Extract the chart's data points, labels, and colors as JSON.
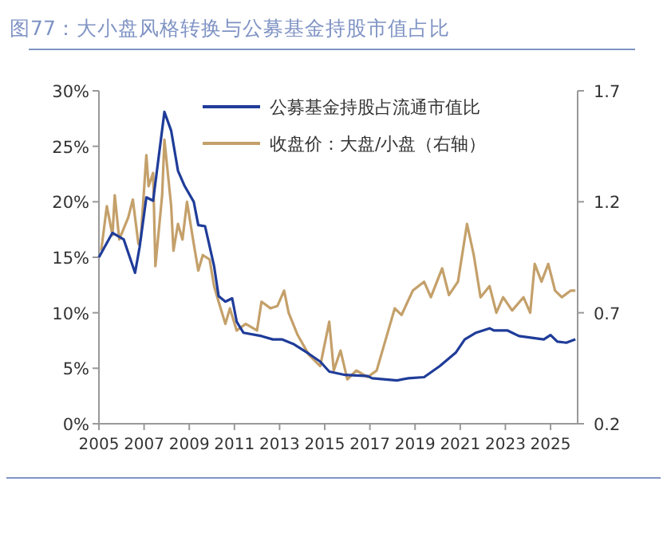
{
  "chart_data": {
    "type": "line",
    "title": "图77：大小盘风格转换与公募基金持股市值占比",
    "xlim": [
      2005,
      2026.2
    ],
    "xticks": [
      2005,
      2007,
      2009,
      2011,
      2013,
      2015,
      2017,
      2019,
      2021,
      2023,
      2025
    ],
    "ylim": [
      0,
      30
    ],
    "yticks": [
      {
        "value": 0,
        "label": "0%"
      },
      {
        "value": 5,
        "label": "5%"
      },
      {
        "value": 10,
        "label": "10%"
      },
      {
        "value": 15,
        "label": "15%"
      },
      {
        "value": 20,
        "label": "20%"
      },
      {
        "value": 25,
        "label": "25%"
      },
      {
        "value": 30,
        "label": "30%"
      }
    ],
    "y2lim": [
      0.2,
      1.7
    ],
    "y2ticks": [
      0.2,
      0.7,
      1.2,
      1.7
    ],
    "legend": "top",
    "grid": false,
    "series": [
      {
        "name": "公募基金持股占流通市值比",
        "color": "#1f3c99",
        "x": [
          2005.0,
          2005.6,
          2006.1,
          2006.6,
          2006.8,
          2007.1,
          2007.4,
          2007.9,
          2008.2,
          2008.5,
          2008.8,
          2009.2,
          2009.4,
          2009.7,
          2010.1,
          2010.3,
          2010.6,
          2010.9,
          2011.1,
          2011.4,
          2012.2,
          2012.7,
          2013.1,
          2013.6,
          2014.3,
          2014.8,
          2015.2,
          2015.9,
          2016.9,
          2017.1,
          2018.2,
          2018.7,
          2019.4,
          2020.1,
          2020.8,
          2021.2,
          2021.7,
          2022.3,
          2022.5,
          2023.1,
          2023.6,
          2024.7,
          2025.0,
          2025.3,
          2025.7,
          2026.1
        ],
        "values": [
          15.0,
          17.2,
          16.6,
          13.6,
          15.9,
          20.4,
          20.1,
          28.1,
          26.4,
          22.8,
          21.4,
          20.0,
          17.9,
          17.8,
          14.2,
          11.5,
          11.0,
          11.3,
          9.2,
          8.2,
          7.9,
          7.6,
          7.6,
          7.2,
          6.3,
          5.6,
          4.7,
          4.4,
          4.3,
          4.1,
          3.9,
          4.1,
          4.2,
          5.2,
          6.4,
          7.6,
          8.2,
          8.6,
          8.4,
          8.4,
          7.9,
          7.6,
          8.0,
          7.4,
          7.3,
          7.6
        ]
      },
      {
        "name": "收盘价：大盘/小盘（右轴）",
        "color": "#c4a06a",
        "axis": "y2",
        "x": [
          2005.1,
          2005.35,
          2005.6,
          2005.7,
          2005.9,
          2006.3,
          2006.5,
          2006.75,
          2006.85,
          2007.1,
          2007.2,
          2007.4,
          2007.5,
          2007.8,
          2007.9,
          2008.2,
          2008.3,
          2008.5,
          2008.7,
          2008.9,
          2009.2,
          2009.4,
          2009.6,
          2009.9,
          2010.1,
          2010.3,
          2010.6,
          2010.8,
          2011.1,
          2011.5,
          2012.0,
          2012.2,
          2012.6,
          2012.9,
          2013.2,
          2013.4,
          2013.8,
          2014.3,
          2014.8,
          2015.2,
          2015.4,
          2015.7,
          2016.0,
          2016.4,
          2016.9,
          2017.3,
          2017.7,
          2018.1,
          2018.4,
          2018.9,
          2019.4,
          2019.7,
          2020.2,
          2020.5,
          2020.9,
          2021.3,
          2021.6,
          2021.9,
          2022.3,
          2022.6,
          2022.9,
          2023.3,
          2023.8,
          2024.1,
          2024.3,
          2024.6,
          2024.9,
          2025.2,
          2025.5,
          2025.9,
          2026.1
        ],
        "values": [
          0.98,
          1.18,
          1.05,
          1.23,
          1.03,
          1.13,
          1.21,
          1.01,
          1.03,
          1.41,
          1.27,
          1.33,
          0.91,
          1.23,
          1.48,
          1.18,
          0.98,
          1.1,
          1.03,
          1.2,
          1.01,
          0.89,
          0.96,
          0.94,
          0.82,
          0.75,
          0.65,
          0.72,
          0.62,
          0.65,
          0.62,
          0.75,
          0.72,
          0.73,
          0.8,
          0.7,
          0.6,
          0.51,
          0.46,
          0.66,
          0.44,
          0.53,
          0.4,
          0.44,
          0.41,
          0.44,
          0.58,
          0.72,
          0.69,
          0.8,
          0.84,
          0.77,
          0.9,
          0.78,
          0.84,
          1.1,
          0.96,
          0.77,
          0.82,
          0.7,
          0.77,
          0.71,
          0.77,
          0.7,
          0.92,
          0.84,
          0.92,
          0.8,
          0.77,
          0.8,
          0.8
        ]
      }
    ]
  }
}
